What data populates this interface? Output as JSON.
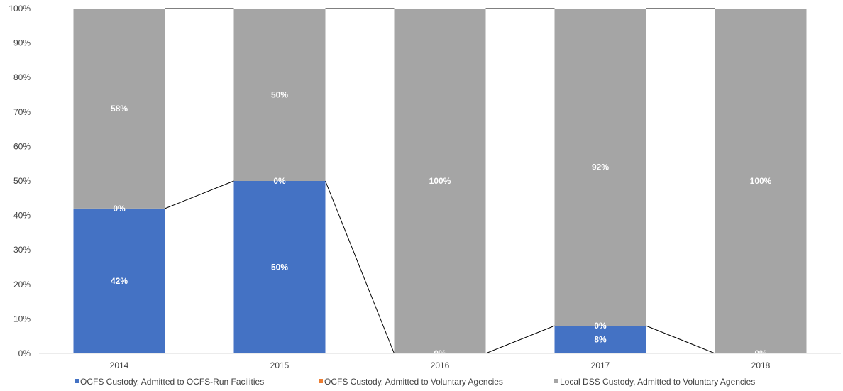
{
  "chart_data": {
    "type": "bar",
    "stacked": true,
    "percent_stacked": true,
    "series_lines": true,
    "categories": [
      "2014",
      "2015",
      "2016",
      "2017",
      "2018"
    ],
    "series": [
      {
        "name": "OCFS Custody, Admitted to OCFS-Run Facilities",
        "color": "#4472C4",
        "values": [
          42,
          50,
          0,
          8,
          0
        ],
        "labels": [
          "42%",
          "50%",
          "0%",
          "8%",
          "0%"
        ]
      },
      {
        "name": "OCFS Custody, Admitted to Voluntary Agencies",
        "color": "#ED7D31",
        "values": [
          0,
          0,
          0,
          0,
          0
        ],
        "labels": [
          "0%",
          "0%",
          "",
          "0%",
          ""
        ]
      },
      {
        "name": "Local DSS Custody, Admitted to Voluntary Agencies",
        "color": "#A5A5A5",
        "values": [
          58,
          50,
          100,
          92,
          100
        ],
        "labels": [
          "58%",
          "50%",
          "100%",
          "92%",
          "100%"
        ]
      }
    ],
    "yticks": [
      "0%",
      "10%",
      "20%",
      "30%",
      "40%",
      "50%",
      "60%",
      "70%",
      "80%",
      "90%",
      "100%"
    ],
    "ylim": [
      0,
      100
    ],
    "grid": false,
    "legend_position": "bottom"
  }
}
